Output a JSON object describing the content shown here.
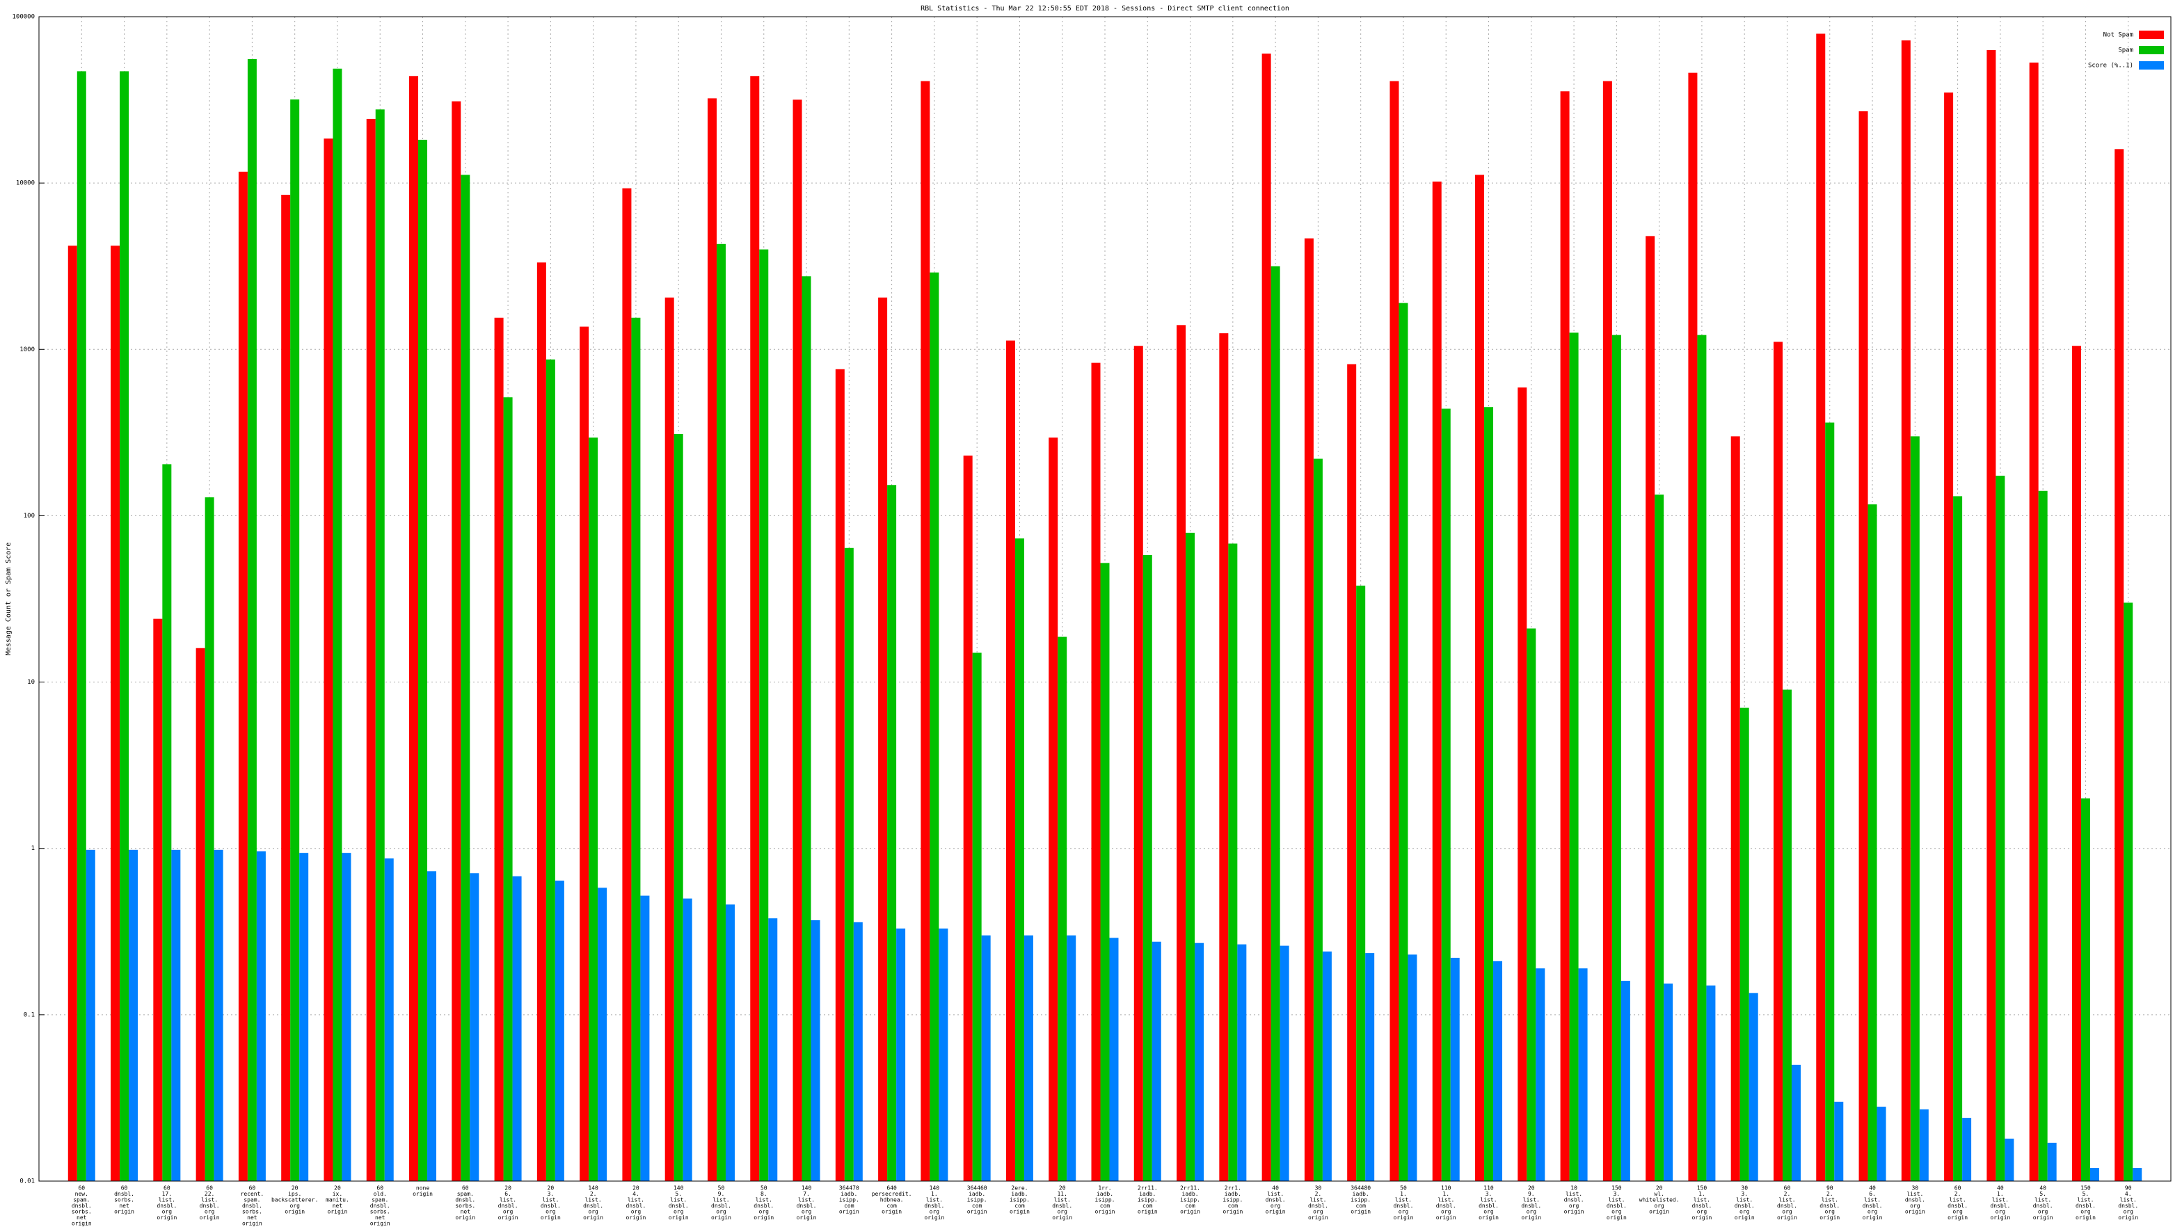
{
  "chart_data": {
    "type": "bar",
    "title": "RBL Statistics - Thu Mar 22 12:50:55 EDT 2018 - Sessions - Direct SMTP client connection",
    "y_label": "Message Count or Spam Score",
    "log_scale": true,
    "grid": true,
    "legend_position": "top-right",
    "ylim": [
      0.01,
      100000
    ],
    "yticks": [
      0.01,
      0.1,
      1,
      10,
      100,
      1000,
      10000,
      100000
    ],
    "categories": [
      [
        "60",
        "new.",
        "spam.",
        "dnsbl.",
        "sorbs.",
        "net",
        "origin"
      ],
      [
        "60",
        "dnsbl.",
        "sorbs.",
        "net",
        "origin"
      ],
      [
        "60",
        "17.",
        "list.",
        "dnsbl.",
        "org",
        "origin"
      ],
      [
        "60",
        "22.",
        "list.",
        "dnsbl.",
        "org",
        "origin"
      ],
      [
        "60",
        "recent.",
        "spam.",
        "dnsbl.",
        "sorbs.",
        "net",
        "origin"
      ],
      [
        "20",
        "ips.",
        "backscatterer.",
        "org",
        "origin"
      ],
      [
        "20",
        "ix.",
        "manitu.",
        "net",
        "origin"
      ],
      [
        "60",
        "old.",
        "spam.",
        "dnsbl.",
        "sorbs.",
        "net",
        "origin"
      ],
      [
        "none",
        "origin"
      ],
      [
        "60",
        "spam.",
        "dnsbl.",
        "sorbs.",
        "net",
        "origin"
      ],
      [
        "20",
        "6.",
        "list.",
        "dnsbl.",
        "org",
        "origin"
      ],
      [
        "20",
        "3.",
        "list.",
        "dnsbl.",
        "org",
        "origin"
      ],
      [
        "140",
        "2.",
        "list.",
        "dnsbl.",
        "org",
        "origin"
      ],
      [
        "20",
        "4.",
        "list.",
        "dnsbl.",
        "org",
        "origin"
      ],
      [
        "140",
        "5.",
        "list.",
        "dnsbl.",
        "org",
        "origin"
      ],
      [
        "50",
        "9.",
        "list.",
        "dnsbl.",
        "org",
        "origin"
      ],
      [
        "50",
        "8.",
        "list.",
        "dnsbl.",
        "org",
        "origin"
      ],
      [
        "140",
        "7.",
        "list.",
        "dnsbl.",
        "org",
        "origin"
      ],
      [
        "364470",
        "iadb.",
        "isipp.",
        "com",
        "origin"
      ],
      [
        "640",
        "persecredit.",
        "hdbnea.",
        "com",
        "origin"
      ],
      [
        "140",
        "1.",
        "list.",
        "dnsbl.",
        "org",
        "origin"
      ],
      [
        "364460",
        "iadb.",
        "isipp.",
        "com",
        "origin"
      ],
      [
        "2ere.",
        "iadb.",
        "isipp.",
        "com",
        "origin"
      ],
      [
        "20",
        "11.",
        "list.",
        "dnsbl.",
        "org",
        "origin"
      ],
      [
        "1rr.",
        "iadb.",
        "isipp.",
        "com",
        "origin"
      ],
      [
        "2rr11.",
        "iadb.",
        "isipp.",
        "com",
        "origin"
      ],
      [
        "2rr11.",
        "iadb.",
        "isipp.",
        "com",
        "origin"
      ],
      [
        "2rr1.",
        "iadb.",
        "isipp.",
        "com",
        "origin"
      ],
      [
        "40",
        "list.",
        "dnsbl.",
        "org",
        "origin"
      ],
      [
        "30",
        "2.",
        "list.",
        "dnsbl.",
        "org",
        "origin"
      ],
      [
        "364480",
        "iadb.",
        "isipp.",
        "com",
        "origin"
      ],
      [
        "50",
        "1.",
        "list.",
        "dnsbl.",
        "org",
        "origin"
      ],
      [
        "110",
        "1.",
        "list.",
        "dnsbl.",
        "org",
        "origin"
      ],
      [
        "110",
        "3.",
        "list.",
        "dnsbl.",
        "org",
        "origin"
      ],
      [
        "20",
        "9.",
        "list.",
        "dnsbl.",
        "org",
        "origin"
      ],
      [
        "10",
        "list.",
        "dnsbl.",
        "org",
        "origin"
      ],
      [
        "150",
        "3.",
        "list.",
        "dnsbl.",
        "org",
        "origin"
      ],
      [
        "20",
        "wl.",
        "whitelisted.",
        "org",
        "origin"
      ],
      [
        "150",
        "1.",
        "list.",
        "dnsbl.",
        "org",
        "origin"
      ],
      [
        "30",
        "3.",
        "list.",
        "dnsbl.",
        "org",
        "origin"
      ],
      [
        "60",
        "2.",
        "list.",
        "dnsbl.",
        "org",
        "origin"
      ],
      [
        "90",
        "2.",
        "list.",
        "dnsbl.",
        "org",
        "origin"
      ],
      [
        "40",
        "6.",
        "list.",
        "dnsbl.",
        "org",
        "origin"
      ],
      [
        "30",
        "list.",
        "dnsbl.",
        "org",
        "origin"
      ],
      [
        "60",
        "2.",
        "list.",
        "dnsbl.",
        "org",
        "origin"
      ],
      [
        "40",
        "1.",
        "list.",
        "dnsbl.",
        "org",
        "origin"
      ],
      [
        "40",
        "5.",
        "list.",
        "dnsbl.",
        "org",
        "origin"
      ],
      [
        "150",
        "5.",
        "list.",
        "dnsbl.",
        "org",
        "origin"
      ],
      [
        "90",
        "4.",
        "list.",
        "dnsbl.",
        "org",
        "origin"
      ]
    ],
    "series": [
      {
        "name": "Not Spam",
        "color": "#ff0000",
        "values": [
          4200,
          4200,
          24,
          16,
          11700,
          8500,
          18500,
          24300,
          44000,
          31000,
          1550,
          3330,
          1370,
          9300,
          2050,
          32300,
          44000,
          31700,
          760,
          2050,
          41000,
          230,
          1130,
          295,
          830,
          1050,
          1400,
          1250,
          60000,
          4650,
          815,
          41000,
          10200,
          11200,
          590,
          35600,
          41000,
          4800,
          46000,
          300,
          1110,
          79000,
          27000,
          72000,
          35000,
          63000,
          53000,
          1050,
          16000
        ]
      },
      {
        "name": "Spam",
        "color": "#00c000",
        "values": [
          47000,
          47000,
          204,
          129,
          55600,
          31800,
          48700,
          27700,
          18200,
          11200,
          515,
          870,
          295,
          1550,
          310,
          4300,
          3990,
          2750,
          64,
          153,
          2900,
          15,
          73,
          18.7,
          52,
          58,
          79,
          68,
          3160,
          220,
          38,
          1900,
          440,
          450,
          21,
          1260,
          1220,
          134,
          1220,
          7,
          9,
          363,
          117,
          300,
          131,
          174,
          141,
          2,
          30
        ]
      },
      {
        "name": "Score (%..1)",
        "color": "#0080ff",
        "values": [
          0.98,
          0.98,
          0.98,
          0.98,
          0.96,
          0.94,
          0.94,
          0.87,
          0.73,
          0.71,
          0.68,
          0.64,
          0.58,
          0.52,
          0.5,
          0.46,
          0.38,
          0.37,
          0.36,
          0.33,
          0.33,
          0.3,
          0.3,
          0.3,
          0.29,
          0.275,
          0.27,
          0.265,
          0.26,
          0.24,
          0.235,
          0.23,
          0.22,
          0.21,
          0.19,
          0.19,
          0.16,
          0.154,
          0.15,
          0.135,
          0.05,
          0.03,
          0.028,
          0.027,
          0.024,
          0.018,
          0.017,
          0.012,
          0.012
        ]
      }
    ]
  }
}
